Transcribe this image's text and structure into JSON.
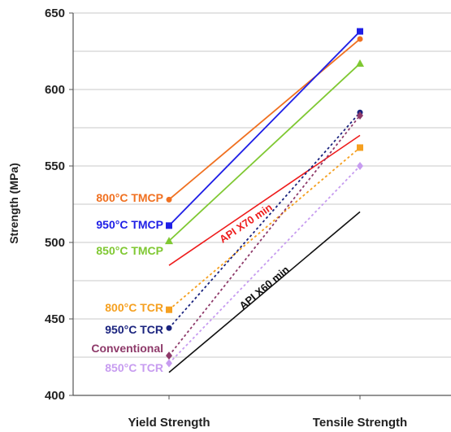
{
  "chart_data": {
    "type": "line",
    "categories": [
      "Yield Strength",
      "Tensile Strength"
    ],
    "ylabel": "Strength (MPa)",
    "ylim": [
      400,
      650
    ],
    "yticks": [
      400,
      450,
      500,
      550,
      600,
      650
    ],
    "grid": true,
    "series": [
      {
        "name": "800°C TMCP",
        "values": [
          528,
          633
        ],
        "color": "#f07020",
        "style": "solid",
        "marker": "circle"
      },
      {
        "name": "950°C TMCP",
        "values": [
          511,
          638
        ],
        "color": "#1f1fe6",
        "style": "solid",
        "marker": "square"
      },
      {
        "name": "850°C TMCP",
        "values": [
          501,
          617
        ],
        "color": "#7fc832",
        "style": "solid",
        "marker": "triangle"
      },
      {
        "name": "800°C TCR",
        "values": [
          456,
          562
        ],
        "color": "#f5a020",
        "style": "dotted",
        "marker": "square"
      },
      {
        "name": "950°C TCR",
        "values": [
          444,
          585
        ],
        "color": "#1a237e",
        "style": "dotted",
        "marker": "circle"
      },
      {
        "name": "Conventional",
        "values": [
          426,
          583
        ],
        "color": "#8e3a6a",
        "style": "dotted",
        "marker": "diamond"
      },
      {
        "name": "850°C TCR",
        "values": [
          421,
          550
        ],
        "color": "#c79cf0",
        "style": "dotted",
        "marker": "diamond"
      }
    ],
    "references": [
      {
        "name": "API X70 min",
        "values": [
          485,
          570
        ],
        "color": "#ee1c1c"
      },
      {
        "name": "API X60 min",
        "values": [
          415,
          520
        ],
        "color": "#111111"
      }
    ]
  }
}
